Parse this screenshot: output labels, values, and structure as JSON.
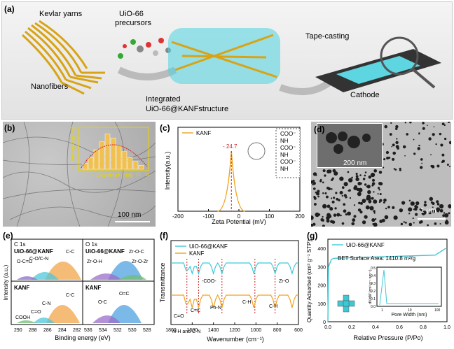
{
  "panel_a": {
    "label": "(a)",
    "kevlar": "Kevlar yarns",
    "uio_precursors_1": "UiO-66",
    "uio_precursors_2": "precursors",
    "nanofibers": "Nanofibers",
    "integrated_1": "Integrated",
    "integrated_2": "UiO-66@KANFstructure",
    "tape": "Tape-casting",
    "cathode": "Cathode"
  },
  "panel_b": {
    "label": "(b)",
    "scale": "100 nm",
    "inset_ylabel": "Percentage (%)",
    "inset_xlabel": "Diameter (nm)",
    "inset_xticks": [
      "0",
      "2",
      "4",
      "6",
      "8",
      "10",
      "12",
      "14"
    ],
    "inset_yticks": [
      "0",
      "5",
      "10",
      "15",
      "20"
    ]
  },
  "panel_c": {
    "label": "(c)",
    "legend": "KANF",
    "peak_label": "- 24.7",
    "ylabel": "Intensity(a.u.)",
    "xlabel": "Zeta Potential (mV)",
    "xticks": [
      "-200",
      "-100",
      "0",
      "100",
      "200"
    ],
    "groups": [
      "COO⁻",
      "NH",
      "COO⁻",
      "NH",
      "COO⁻",
      "NH"
    ]
  },
  "panel_d": {
    "label": "(d)",
    "scale_inset": "200 nm",
    "scale_main": "1 μm"
  },
  "panel_e": {
    "label": "(e)",
    "c1s": "C 1s",
    "o1s": "O 1s",
    "uio": "UiO-66@KANF",
    "kanf": "KANF",
    "c_peaks_top": [
      "C-C",
      "O-C=O",
      "C-O/C-N"
    ],
    "c_peaks_bot": [
      "C-C",
      "C-N",
      "C=O",
      "COOH"
    ],
    "o_peaks_top": [
      "Zr-O-C",
      "Zr-O-H",
      "Zr-O-Zr"
    ],
    "o_peaks_bot": [
      "O=C",
      "O-C"
    ],
    "ylabel": "Intensity (a.u.)",
    "xlabel": "Binding energy (eV)",
    "xticks_c": [
      "290",
      "288",
      "286",
      "284",
      "282"
    ],
    "xticks_o": [
      "536",
      "534",
      "532",
      "530",
      "528"
    ]
  },
  "panel_f": {
    "label": "(f)",
    "legend": [
      "UiO-66@KANF",
      "KANF"
    ],
    "ylabel": "Transmittance",
    "xlabel": "Wavenumber (cm⁻¹)",
    "xticks": [
      "1800",
      "1600",
      "1400",
      "1200",
      "1000",
      "800",
      "600"
    ],
    "annotations": [
      "-COO-",
      "C=O",
      "C=C",
      "Ph-N",
      "C-H",
      "C-H",
      "Zr-O",
      "N-H and C-N"
    ],
    "colors": {
      "uio": "#3cc9d6",
      "kanf": "#f0a21c"
    }
  },
  "panel_g": {
    "label": "(g)",
    "legend": "UiO-66@KANF",
    "bet": "BET Surface Area: 1410.8 m²/g",
    "ylabel": "Quantity Adsorbed (cm³ g⁻¹ STP)",
    "xlabel": "Relative Pressure (P/Po)",
    "xticks": [
      "0.0",
      "0.2",
      "0.4",
      "0.6",
      "0.8",
      "1.0"
    ],
    "yticks": [
      "0",
      "100",
      "200",
      "300",
      "400"
    ],
    "inset_ylabel": "dV/dW (cm³ g⁻¹ nm⁻¹)",
    "inset_xlabel": "Pore Width (nm)",
    "inset_yticks": [
      "0.0",
      "0.1",
      "0.2",
      "0.3",
      "0.4",
      "0.5"
    ],
    "inset_xticks": [
      "1",
      "10",
      "100"
    ]
  }
}
